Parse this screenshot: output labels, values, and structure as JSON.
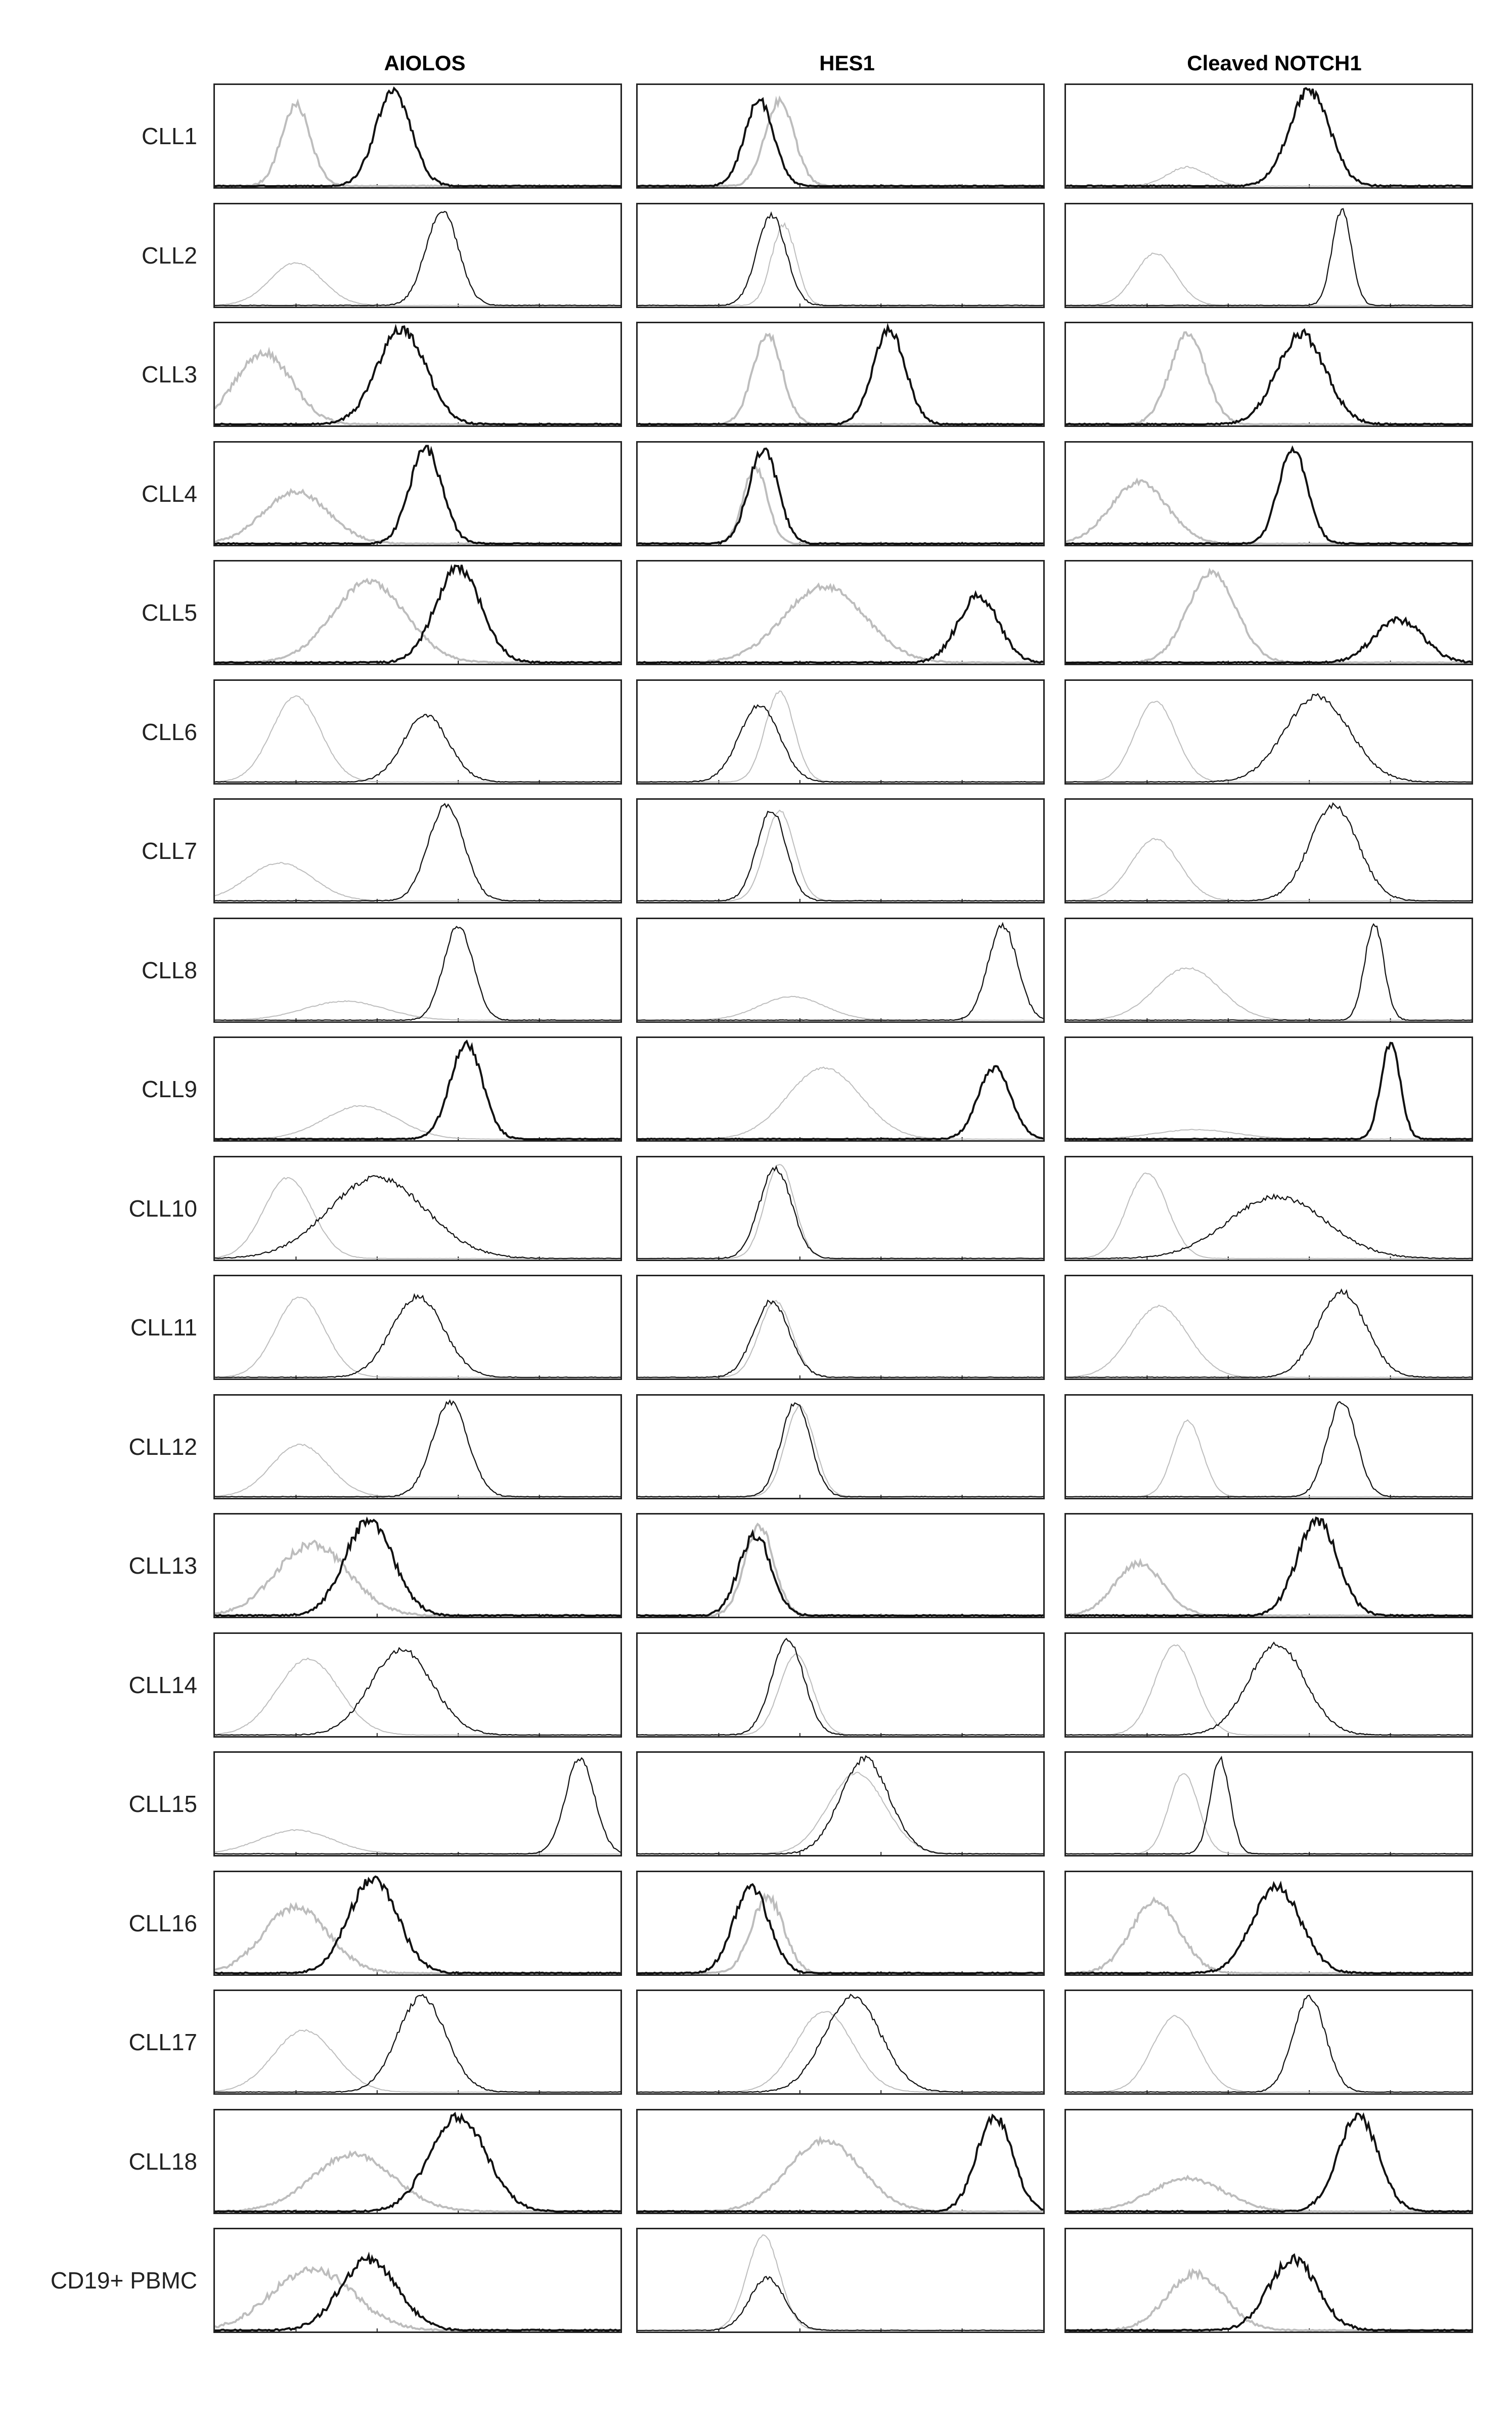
{
  "columns": [
    "AIOLOS",
    "HES1",
    "Cleaved NOTCH1"
  ],
  "rows": [
    {
      "label": "CLL1",
      "p": [
        [
          1.0,
          0.85,
          0.18,
          1.2
        ],
        [
          2.2,
          1.0,
          0.22,
          1.2
        ],
        [
          1.75,
          0.9,
          0.18,
          1.0
        ],
        [
          1.5,
          0.9,
          0.18,
          1.2
        ],
        [
          1.5,
          0.2,
          0.25,
          0.5
        ],
        [
          3.0,
          1.0,
          0.25,
          1.4
        ]
      ]
    },
    {
      "label": "CLL2",
      "p": [
        [
          1.0,
          0.45,
          0.32,
          0.3
        ],
        [
          2.8,
          1.0,
          0.2,
          0.8
        ],
        [
          1.8,
          0.85,
          0.15,
          0.8
        ],
        [
          1.65,
          0.95,
          0.18,
          0.8
        ],
        [
          1.1,
          0.55,
          0.25,
          0.3
        ],
        [
          3.4,
          1.0,
          0.12,
          0.8
        ]
      ]
    },
    {
      "label": "CLL3",
      "p": [
        [
          0.6,
          0.75,
          0.35,
          1.2
        ],
        [
          2.3,
          1.0,
          0.3,
          1.4
        ],
        [
          1.6,
          0.95,
          0.18,
          1.0
        ],
        [
          3.1,
          1.0,
          0.2,
          1.2
        ],
        [
          1.5,
          0.95,
          0.22,
          1.0
        ],
        [
          2.9,
          0.95,
          0.3,
          1.4
        ]
      ]
    },
    {
      "label": "CLL4",
      "p": [
        [
          1.0,
          0.55,
          0.4,
          0.9
        ],
        [
          2.6,
          1.0,
          0.2,
          1.3
        ],
        [
          1.45,
          0.8,
          0.15,
          0.9
        ],
        [
          1.55,
          1.0,
          0.18,
          1.3
        ],
        [
          0.9,
          0.65,
          0.35,
          0.9
        ],
        [
          2.8,
          1.0,
          0.18,
          1.3
        ]
      ]
    },
    {
      "label": "CLL5",
      "p": [
        [
          1.9,
          0.85,
          0.45,
          0.9
        ],
        [
          3.0,
          1.0,
          0.28,
          1.4
        ],
        [
          2.3,
          0.8,
          0.5,
          0.9
        ],
        [
          4.2,
          0.7,
          0.25,
          1.4
        ],
        [
          1.8,
          0.95,
          0.3,
          0.9
        ],
        [
          4.1,
          0.45,
          0.3,
          1.4
        ]
      ]
    },
    {
      "label": "CLL6",
      "p": [
        [
          1.0,
          0.9,
          0.3,
          0.3
        ],
        [
          2.6,
          0.7,
          0.28,
          0.8
        ],
        [
          1.75,
          0.95,
          0.18,
          0.3
        ],
        [
          1.5,
          0.8,
          0.25,
          0.8
        ],
        [
          1.1,
          0.85,
          0.25,
          0.3
        ],
        [
          3.1,
          0.9,
          0.4,
          0.8
        ]
      ]
    },
    {
      "label": "CLL7",
      "p": [
        [
          0.8,
          0.4,
          0.4,
          0.3
        ],
        [
          2.85,
          1.0,
          0.22,
          0.8
        ],
        [
          1.75,
          0.95,
          0.18,
          0.3
        ],
        [
          1.65,
          0.95,
          0.18,
          0.8
        ],
        [
          1.1,
          0.65,
          0.3,
          0.3
        ],
        [
          3.3,
          1.0,
          0.3,
          0.8
        ]
      ]
    },
    {
      "label": "CLL8",
      "p": [
        [
          1.6,
          0.2,
          0.5,
          0.3
        ],
        [
          3.0,
          1.0,
          0.18,
          0.8
        ],
        [
          1.9,
          0.25,
          0.4,
          0.3
        ],
        [
          4.5,
          1.0,
          0.18,
          0.8
        ],
        [
          1.5,
          0.55,
          0.4,
          0.3
        ],
        [
          3.8,
          1.0,
          0.12,
          0.8
        ]
      ]
    },
    {
      "label": "CLL9",
      "p": [
        [
          1.8,
          0.35,
          0.45,
          0.3
        ],
        [
          3.1,
          1.0,
          0.2,
          1.0
        ],
        [
          2.3,
          0.75,
          0.45,
          0.3
        ],
        [
          4.4,
          0.75,
          0.2,
          1.0
        ],
        [
          1.6,
          0.1,
          0.5,
          0.3
        ],
        [
          4.0,
          1.0,
          0.12,
          1.0
        ]
      ]
    },
    {
      "label": "CLL10",
      "p": [
        [
          0.9,
          0.85,
          0.3,
          0.3
        ],
        [
          2.0,
          0.85,
          0.6,
          0.8
        ],
        [
          1.75,
          1.0,
          0.18,
          0.3
        ],
        [
          1.7,
          0.95,
          0.2,
          0.8
        ],
        [
          1.0,
          0.9,
          0.25,
          0.3
        ],
        [
          2.6,
          0.65,
          0.6,
          0.8
        ]
      ]
    },
    {
      "label": "CLL11",
      "p": [
        [
          1.05,
          0.85,
          0.3,
          0.3
        ],
        [
          2.5,
          0.85,
          0.32,
          0.8
        ],
        [
          1.7,
          0.8,
          0.2,
          0.3
        ],
        [
          1.65,
          0.8,
          0.22,
          0.8
        ],
        [
          1.15,
          0.75,
          0.35,
          0.3
        ],
        [
          3.4,
          0.9,
          0.3,
          0.8
        ]
      ]
    },
    {
      "label": "CLL12",
      "p": [
        [
          1.05,
          0.55,
          0.35,
          0.3
        ],
        [
          2.9,
          1.0,
          0.22,
          0.8
        ],
        [
          2.0,
          0.95,
          0.18,
          0.3
        ],
        [
          1.95,
          1.0,
          0.18,
          0.8
        ],
        [
          1.5,
          0.8,
          0.18,
          0.3
        ],
        [
          3.4,
          1.0,
          0.18,
          0.8
        ]
      ]
    },
    {
      "label": "CLL13",
      "p": [
        [
          1.2,
          0.75,
          0.45,
          1.2
        ],
        [
          1.9,
          1.0,
          0.3,
          1.4
        ],
        [
          1.5,
          0.95,
          0.18,
          1.2
        ],
        [
          1.45,
          0.85,
          0.2,
          1.4
        ],
        [
          0.9,
          0.55,
          0.3,
          0.9
        ],
        [
          3.1,
          1.0,
          0.25,
          1.4
        ]
      ]
    },
    {
      "label": "CLL14",
      "p": [
        [
          1.15,
          0.8,
          0.38,
          0.3
        ],
        [
          2.3,
          0.9,
          0.38,
          0.8
        ],
        [
          1.95,
          0.85,
          0.2,
          0.3
        ],
        [
          1.85,
          1.0,
          0.2,
          0.8
        ],
        [
          1.35,
          0.95,
          0.25,
          0.3
        ],
        [
          2.6,
          0.95,
          0.35,
          0.8
        ]
      ]
    },
    {
      "label": "CLL15",
      "p": [
        [
          1.0,
          0.25,
          0.45,
          0.3
        ],
        [
          4.5,
          1.0,
          0.18,
          0.8
        ],
        [
          2.7,
          0.85,
          0.35,
          0.3
        ],
        [
          2.8,
          1.0,
          0.3,
          0.8
        ],
        [
          1.45,
          0.85,
          0.18,
          0.3
        ],
        [
          1.9,
          1.0,
          0.12,
          0.8
        ]
      ]
    },
    {
      "label": "CLL16",
      "p": [
        [
          1.0,
          0.7,
          0.4,
          1.2
        ],
        [
          1.95,
          1.0,
          0.3,
          1.4
        ],
        [
          1.6,
          0.8,
          0.2,
          1.2
        ],
        [
          1.4,
          0.9,
          0.22,
          1.4
        ],
        [
          1.1,
          0.75,
          0.3,
          1.2
        ],
        [
          2.6,
          0.9,
          0.3,
          1.4
        ]
      ]
    },
    {
      "label": "CLL17",
      "p": [
        [
          1.1,
          0.65,
          0.38,
          0.3
        ],
        [
          2.55,
          1.0,
          0.3,
          0.8
        ],
        [
          2.3,
          0.85,
          0.35,
          0.3
        ],
        [
          2.65,
          1.0,
          0.35,
          0.8
        ],
        [
          1.35,
          0.8,
          0.28,
          0.3
        ],
        [
          3.0,
          1.0,
          0.2,
          0.8
        ]
      ]
    },
    {
      "label": "CLL18",
      "p": [
        [
          1.7,
          0.6,
          0.5,
          0.9
        ],
        [
          3.0,
          1.0,
          0.35,
          1.3
        ],
        [
          2.3,
          0.75,
          0.45,
          0.9
        ],
        [
          4.4,
          1.0,
          0.22,
          1.3
        ],
        [
          1.5,
          0.35,
          0.45,
          0.9
        ],
        [
          3.6,
          1.0,
          0.25,
          1.3
        ]
      ]
    },
    {
      "label": "CD19+ PBMC",
      "p": [
        [
          1.2,
          0.65,
          0.5,
          1.4
        ],
        [
          1.9,
          0.75,
          0.35,
          1.5
        ],
        [
          1.55,
          1.0,
          0.2,
          0.4
        ],
        [
          1.6,
          0.55,
          0.22,
          0.8
        ],
        [
          1.6,
          0.6,
          0.35,
          1.2
        ],
        [
          2.8,
          0.75,
          0.3,
          1.5
        ]
      ]
    }
  ],
  "colors": {
    "control": "#bdbdbd",
    "stain": "#111111",
    "frame": "#222222"
  }
}
